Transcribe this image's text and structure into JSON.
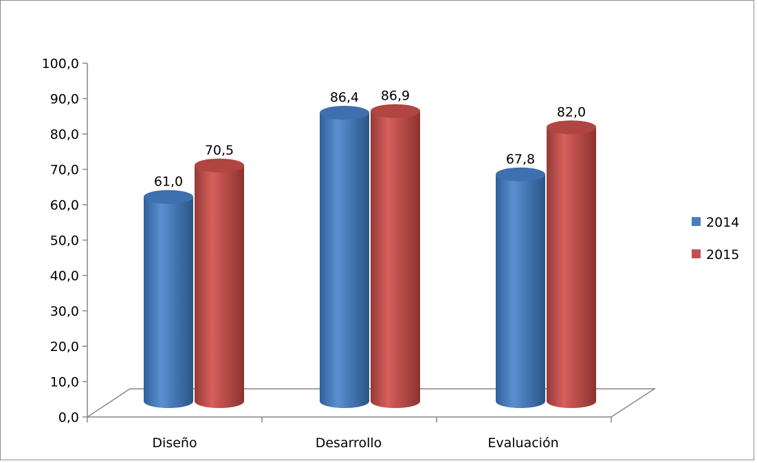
{
  "chart_data": {
    "type": "bar",
    "categories": [
      "Diseño",
      "Desarrollo",
      "Evaluación"
    ],
    "series": [
      {
        "name": "2014",
        "color": "#4a7ebb",
        "values": [
          61.0,
          86.4,
          67.8
        ],
        "labels": [
          "61,0",
          "86,4",
          "67,8"
        ]
      },
      {
        "name": "2015",
        "color": "#c0504d",
        "values": [
          70.5,
          86.9,
          82.0
        ],
        "labels": [
          "70,5",
          "86,9",
          "82,0"
        ]
      }
    ],
    "ylim": [
      0,
      100
    ],
    "yticks": [
      0,
      10,
      20,
      30,
      40,
      50,
      60,
      70,
      80,
      90,
      100
    ],
    "ytick_labels": [
      "0,0",
      "10,0",
      "20,0",
      "30,0",
      "40,0",
      "50,0",
      "60,0",
      "70,0",
      "80,0",
      "90,0",
      "100,0"
    ],
    "style": "3d-cylinder",
    "grid": false,
    "legend": "right"
  }
}
